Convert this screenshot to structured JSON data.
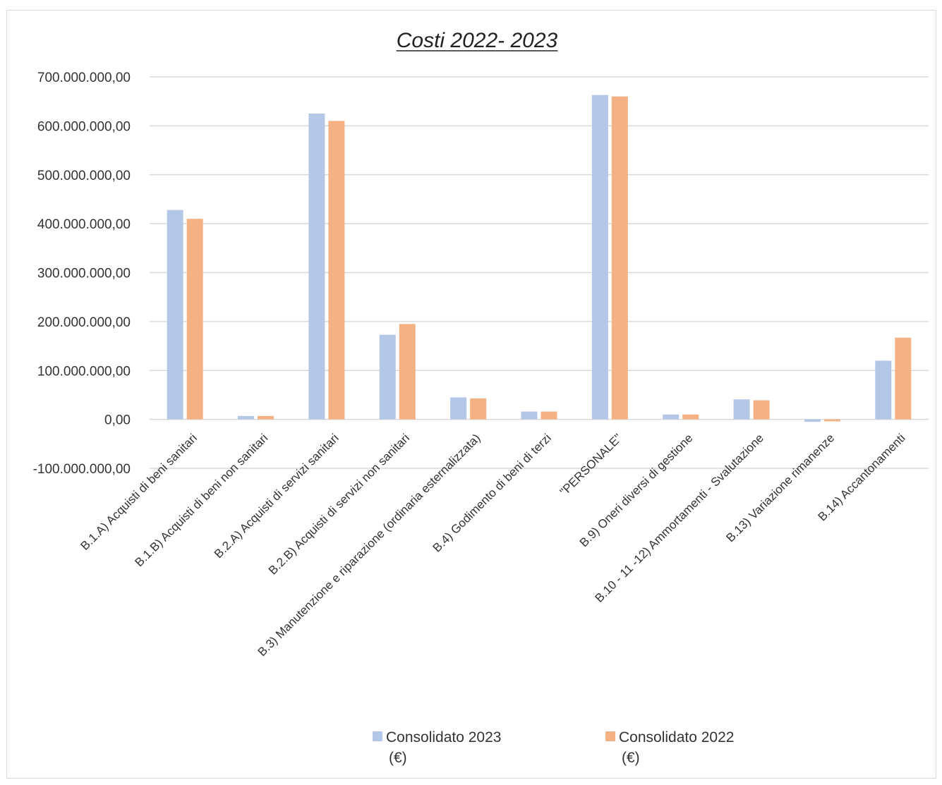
{
  "chart_data": {
    "type": "bar",
    "title": "Costi 2022- 2023",
    "xlabel": "",
    "ylabel": "",
    "ylim": [
      -100000000,
      700000000
    ],
    "ytick_values": [
      700000000,
      600000000,
      500000000,
      400000000,
      300000000,
      200000000,
      100000000,
      0,
      -100000000
    ],
    "yticks": [
      "700.000.000,00",
      "600.000.000,00",
      "500.000.000,00",
      "400.000.000,00",
      "300.000.000,00",
      "200.000.000,00",
      "100.000.000,00",
      "0,00",
      "-100.000.000,00"
    ],
    "grid": true,
    "legend_position": "bottom",
    "categories": [
      "B.1.A)  Acquisti di beni sanitari",
      "B.1.B)  Acquisti di beni non sanitari",
      "B.2.A)  Acquisti di servizi sanitari",
      "B.2.B) Acquisti di servizi non sanitari",
      "B.3)  Manutenzione e riparazione (ordinaria esternalizzata)",
      "B.4)   Godimento di beni di terzi",
      "\"PERSONALE\"",
      "B.9)   Oneri diversi di gestione",
      "B.10 - 11 -12) Ammortamenti - Svalutazione",
      "B.13) Variazione rimanenze",
      "B.14) Accantonamenti"
    ],
    "series": [
      {
        "name": "Consolidato 2023",
        "name_line2": "(€)",
        "color": "#b4c7e7",
        "values": [
          428000000,
          7000000,
          625000000,
          173000000,
          45000000,
          16000000,
          663000000,
          10000000,
          41000000,
          -5000000,
          120000000
        ]
      },
      {
        "name": "Consolidato 2022",
        "name_line2": "(€)",
        "color": "#f4b183",
        "values": [
          410000000,
          7000000,
          610000000,
          195000000,
          43000000,
          16000000,
          660000000,
          10000000,
          39000000,
          -4000000,
          167000000
        ]
      }
    ]
  }
}
